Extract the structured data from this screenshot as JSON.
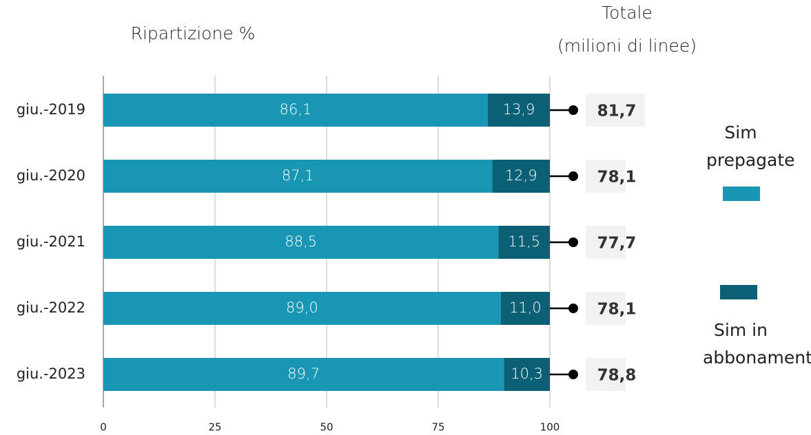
{
  "chart_data": {
    "type": "stacked-hbar",
    "title": "Ripartizione %",
    "totals_title": [
      "Totale",
      "(milioni di linee)"
    ],
    "categories": [
      "giu.-2019",
      "giu.-2020",
      "giu.-2021",
      "giu.-2022",
      "giu.-2023"
    ],
    "series": [
      {
        "name": "Sim prepagate",
        "color": "#1a96b5",
        "values": [
          86.1,
          87.1,
          88.5,
          89.0,
          89.7
        ],
        "value_labels": [
          "86,1",
          "87,1",
          "88,5",
          "89,0",
          "89,7"
        ]
      },
      {
        "name": "Sim in abbonamento",
        "color": "#0b6075",
        "values": [
          13.9,
          12.9,
          11.5,
          11.0,
          10.3
        ],
        "value_labels": [
          "13,9",
          "12,9",
          "11,5",
          "11,0",
          "10,3"
        ]
      }
    ],
    "totals": {
      "values": [
        81.7,
        78.1,
        77.7,
        78.1,
        78.8
      ],
      "value_labels": [
        "81,7",
        "78,1",
        "77,7",
        "78,1",
        "78,8"
      ]
    },
    "xlim": [
      0,
      100
    ],
    "xticks": [
      0,
      25,
      50,
      75,
      100
    ],
    "grid": true
  }
}
